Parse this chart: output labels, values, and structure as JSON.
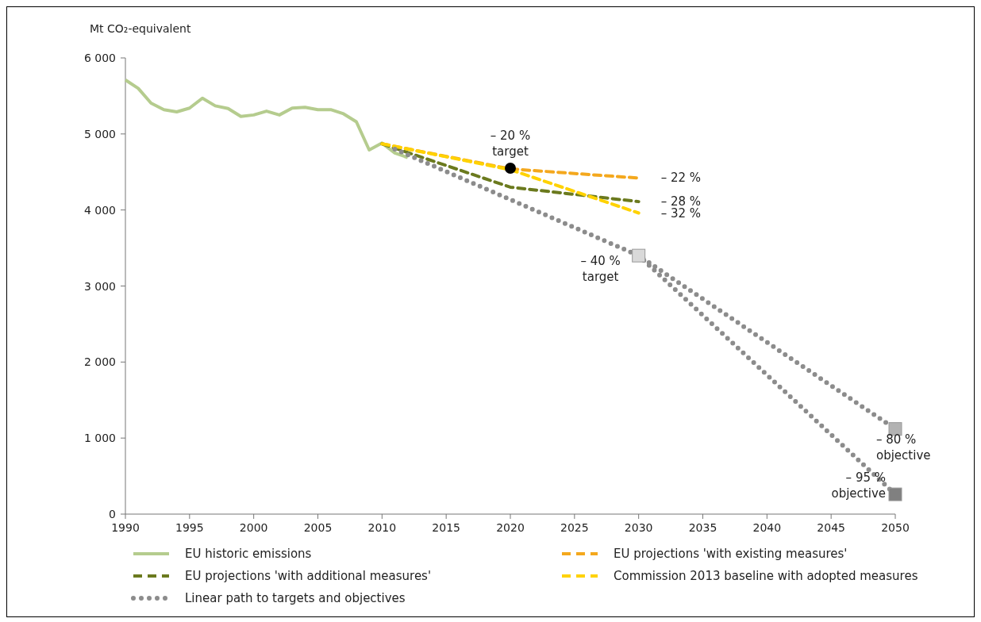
{
  "chart_data": {
    "type": "line",
    "ylabel": "Mt CO₂-equivalent",
    "xlim": [
      1990,
      2050
    ],
    "xticks": [
      1990,
      1995,
      2000,
      2005,
      2010,
      2015,
      2020,
      2025,
      2030,
      2035,
      2040,
      2045,
      2050
    ],
    "ylim": [
      0,
      6000
    ],
    "yticks": [
      0,
      {
        "value": 1000,
        "label": "1 000"
      },
      {
        "value": 2000,
        "label": "2 000"
      },
      {
        "value": 3000,
        "label": "3 000"
      },
      {
        "value": 4000,
        "label": "4 000"
      },
      {
        "value": 5000,
        "label": "5 000"
      },
      {
        "value": 6000,
        "label": "6 000"
      }
    ],
    "grid": false,
    "legend": "bottom",
    "series": [
      {
        "name": "EU historic emissions",
        "color": "#b5cc8e",
        "line_style": "solid",
        "marker": "none",
        "x": [
          1990,
          1991,
          1992,
          1993,
          1994,
          1995,
          1996,
          1997,
          1998,
          1999,
          2000,
          2001,
          2002,
          2003,
          2004,
          2005,
          2006,
          2007,
          2008,
          2009,
          2010,
          2011,
          2012
        ],
        "values": [
          5710,
          5600,
          5405,
          5320,
          5290,
          5340,
          5470,
          5370,
          5335,
          5230,
          5250,
          5300,
          5250,
          5340,
          5350,
          5320,
          5320,
          5265,
          5160,
          4790,
          4880,
          4750,
          4690
        ]
      },
      {
        "name": "EU projections 'with existing measures'",
        "color": "#f4a81d",
        "line_style": "dashed",
        "marker": "none",
        "x": [
          2010,
          2020,
          2030
        ],
        "values": [
          4870,
          4540,
          4420
        ]
      },
      {
        "name": "EU projections 'with additional measures'",
        "color": "#6b7a1e",
        "line_style": "dashed",
        "marker": "none",
        "x": [
          2010,
          2020,
          2030
        ],
        "values": [
          4870,
          4300,
          4110
        ]
      },
      {
        "name": "Commission 2013 baseline with adopted measures",
        "color": "#ffd200",
        "line_style": "dashed",
        "marker": "none",
        "x": [
          2010,
          2020,
          2030
        ],
        "values": [
          4870,
          4530,
          3960
        ]
      },
      {
        "name": "Linear path to targets and objectives",
        "color": "#8c8c8c",
        "line_style": "dotted",
        "marker": "none",
        "x": [
          2011,
          2030,
          2050
        ],
        "values": [
          4800,
          3400,
          1120
        ]
      },
      {
        "color": "#8c8c8c",
        "line_style": "dotted",
        "marker": "none",
        "x": [
          2030,
          2050
        ],
        "values": [
          3400,
          260
        ]
      },
      {
        "type": "scatter",
        "color": "#000000",
        "marker": "circle",
        "x": [
          2020
        ],
        "values": [
          4550
        ]
      },
      {
        "type": "scatter",
        "colors": [
          "#d9d9d9",
          "#b3b3b3",
          "#808080"
        ],
        "marker": "square",
        "x": [
          2030,
          2050,
          2050
        ],
        "values": [
          3400,
          1120,
          260
        ]
      }
    ],
    "annotations": [
      {
        "text": "– 20 %\ntarget",
        "x": 2020,
        "y": 4550
      },
      {
        "text": "– 22 %",
        "x": 2030,
        "y": 4420
      },
      {
        "text": "– 28 %",
        "x": 2030,
        "y": 4110
      },
      {
        "text": "– 32 %",
        "x": 2030,
        "y": 3960
      },
      {
        "text": "– 40 %\ntarget",
        "x": 2030,
        "y": 3400
      },
      {
        "text": "– 80 %\nobjective",
        "x": 2050,
        "y": 1120
      },
      {
        "text": "– 95 %\nobjective",
        "x": 2050,
        "y": 260
      }
    ]
  }
}
